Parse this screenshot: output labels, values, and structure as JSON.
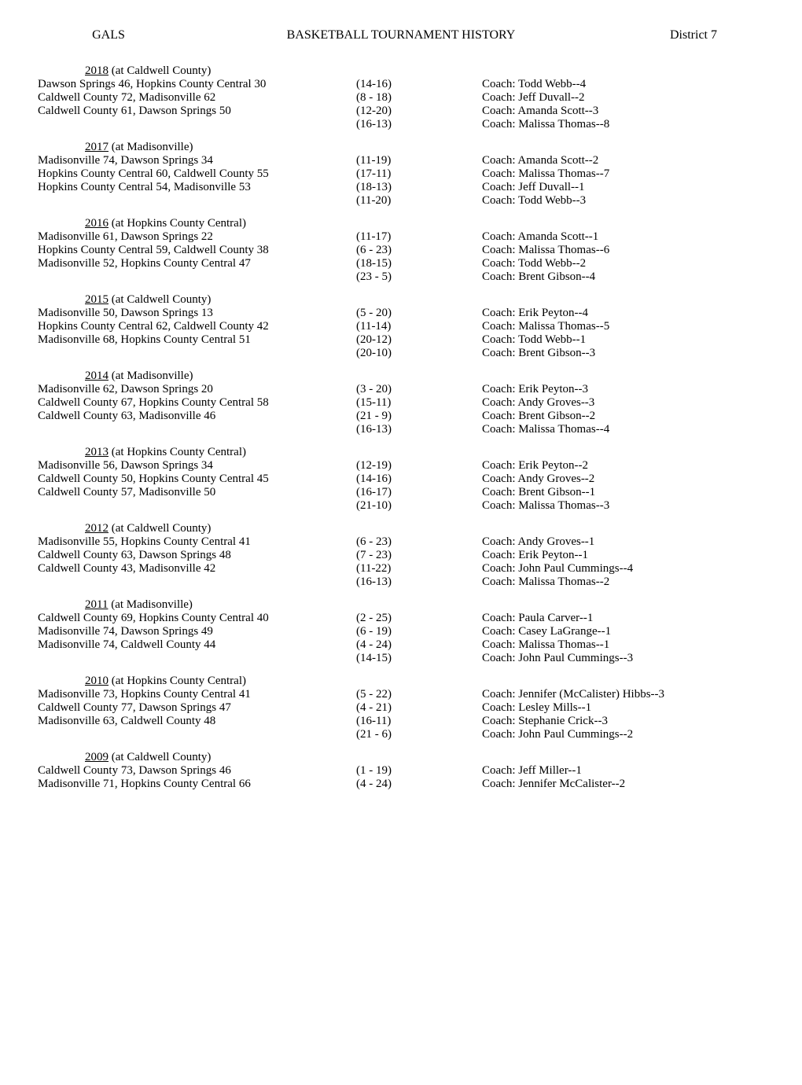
{
  "header": {
    "left": "GALS",
    "center": "BASKETBALL TOURNAMENT HISTORY",
    "right": "District 7"
  },
  "seasons": [
    {
      "year": "2018",
      "venue": "(at Caldwell County)",
      "rows": [
        {
          "game": "Dawson Springs 46, Hopkins County Central 30",
          "score": "(14-16)",
          "coach": "Coach:  Todd Webb--4"
        },
        {
          "game": "Caldwell County 72, Madisonville 62",
          "score": "(8 - 18)",
          "coach": "Coach:  Jeff Duvall--2"
        },
        {
          "game": "Caldwell County 61, Dawson Springs 50",
          "score": "(12-20)",
          "coach": "Coach:  Amanda Scott--3"
        },
        {
          "game": "",
          "score": "(16-13)",
          "coach": "Coach:  Malissa Thomas--8"
        }
      ]
    },
    {
      "year": "2017",
      "venue": "(at Madisonville)",
      "rows": [
        {
          "game": "Madisonville 74, Dawson Springs 34",
          "score": "(11-19)",
          "coach": "Coach:  Amanda Scott--2"
        },
        {
          "game": "Hopkins County Central 60, Caldwell County 55",
          "score": "(17-11)",
          "coach": "Coach:  Malissa Thomas--7"
        },
        {
          "game": "Hopkins County Central 54, Madisonville 53",
          "score": "(18-13)",
          "coach": "Coach:  Jeff Duvall--1"
        },
        {
          "game": "",
          "score": "(11-20)",
          "coach": "Coach:  Todd Webb--3"
        }
      ]
    },
    {
      "year": "2016",
      "venue": "(at Hopkins County Central)",
      "rows": [
        {
          "game": "Madisonville 61, Dawson Springs 22",
          "score": "(11-17)",
          "coach": "Coach:  Amanda Scott--1"
        },
        {
          "game": "Hopkins County Central 59, Caldwell County 38",
          "score": "(6 - 23)",
          "coach": "Coach:  Malissa Thomas--6"
        },
        {
          "game": "Madisonville 52, Hopkins County Central 47",
          "score": "(18-15)",
          "coach": "Coach:  Todd Webb--2"
        },
        {
          "game": "",
          "score": "(23 - 5)",
          "coach": "Coach:  Brent Gibson--4"
        }
      ]
    },
    {
      "year": "2015",
      "venue": "(at Caldwell County)",
      "rows": [
        {
          "game": "Madisonville 50, Dawson Springs 13",
          "score": "(5 - 20)",
          "coach": "Coach:  Erik Peyton--4"
        },
        {
          "game": "Hopkins County Central 62, Caldwell County 42",
          "score": "(11-14)",
          "coach": "Coach:  Malissa Thomas--5"
        },
        {
          "game": "Madisonville 68, Hopkins County Central 51",
          "score": "(20-12)",
          "coach": "Coach:  Todd Webb--1"
        },
        {
          "game": "",
          "score": "(20-10)",
          "coach": "Coach:  Brent Gibson--3"
        }
      ]
    },
    {
      "year": "2014",
      "venue": "(at Madisonville)",
      "rows": [
        {
          "game": "Madisonville 62, Dawson Springs 20",
          "score": "(3 - 20)",
          "coach": "Coach:  Erik Peyton--3"
        },
        {
          "game": "Caldwell County 67, Hopkins County Central 58",
          "score": "(15-11)",
          "coach": "Coach:  Andy Groves--3"
        },
        {
          "game": "Caldwell County 63, Madisonville 46",
          "score": "(21 - 9)",
          "coach": "Coach:  Brent Gibson--2"
        },
        {
          "game": "",
          "score": "(16-13)",
          "coach": "Coach:  Malissa Thomas--4"
        }
      ]
    },
    {
      "year": "2013",
      "venue": "(at Hopkins County Central)",
      "rows": [
        {
          "game": "Madisonville 56, Dawson Springs 34",
          "score": "(12-19)",
          "coach": "Coach:  Erik Peyton--2"
        },
        {
          "game": "Caldwell County 50, Hopkins County Central 45",
          "score": "(14-16)",
          "coach": "Coach:  Andy Groves--2"
        },
        {
          "game": "Caldwell County 57, Madisonville 50",
          "score": "(16-17)",
          "coach": "Coach:  Brent Gibson--1"
        },
        {
          "game": "",
          "score": "(21-10)",
          "coach": "Coach:  Malissa Thomas--3"
        }
      ]
    },
    {
      "year": "2012",
      "venue": "(at Caldwell County)",
      "rows": [
        {
          "game": "Madisonville 55, Hopkins County Central 41",
          "score": "(6 - 23)",
          "coach": "Coach:  Andy Groves--1"
        },
        {
          "game": "Caldwell County 63, Dawson Springs 48",
          "score": "(7 - 23)",
          "coach": "Coach:  Erik Peyton--1"
        },
        {
          "game": "Caldwell County 43, Madisonville 42",
          "score": "(11-22)",
          "coach": "Coach:  John Paul Cummings--4"
        },
        {
          "game": "",
          "score": "(16-13)",
          "coach": "Coach:  Malissa Thomas--2"
        }
      ]
    },
    {
      "year": "2011",
      "venue": "(at Madisonville)",
      "rows": [
        {
          "game": "Caldwell County 69, Hopkins County Central 40",
          "score": "(2 - 25)",
          "coach": "Coach:  Paula Carver--1"
        },
        {
          "game": "Madisonville 74, Dawson Springs 49",
          "score": "(6 - 19)",
          "coach": "Coach:  Casey LaGrange--1"
        },
        {
          "game": "Madisonville 74, Caldwell County 44",
          "score": "(4 - 24)",
          "coach": "Coach:  Malissa Thomas--1"
        },
        {
          "game": "",
          "score": "(14-15)",
          "coach": "Coach:  John Paul Cummings--3"
        }
      ]
    },
    {
      "year": "2010",
      "venue": "(at Hopkins County Central)",
      "rows": [
        {
          "game": "Madisonville 73, Hopkins County Central 41",
          "score": "(5 - 22)",
          "coach": "Coach:  Jennifer (McCalister) Hibbs--3"
        },
        {
          "game": "Caldwell County 77, Dawson Springs 47",
          "score": "(4 - 21)",
          "coach": "Coach:  Lesley Mills--1"
        },
        {
          "game": "Madisonville 63, Caldwell County 48",
          "score": "(16-11)",
          "coach": "Coach:  Stephanie Crick--3"
        },
        {
          "game": "",
          "score": "(21 - 6)",
          "coach": "Coach:  John Paul Cummings--2"
        }
      ]
    },
    {
      "year": "2009",
      "venue": "(at Caldwell County)",
      "rows": [
        {
          "game": "Caldwell County 73, Dawson Springs 46",
          "score": "(1 - 19)",
          "coach": "Coach:  Jeff Miller--1"
        },
        {
          "game": "Madisonville 71, Hopkins County Central 66",
          "score": "(4 - 24)",
          "coach": "Coach:  Jennifer McCalister--2"
        }
      ]
    }
  ]
}
